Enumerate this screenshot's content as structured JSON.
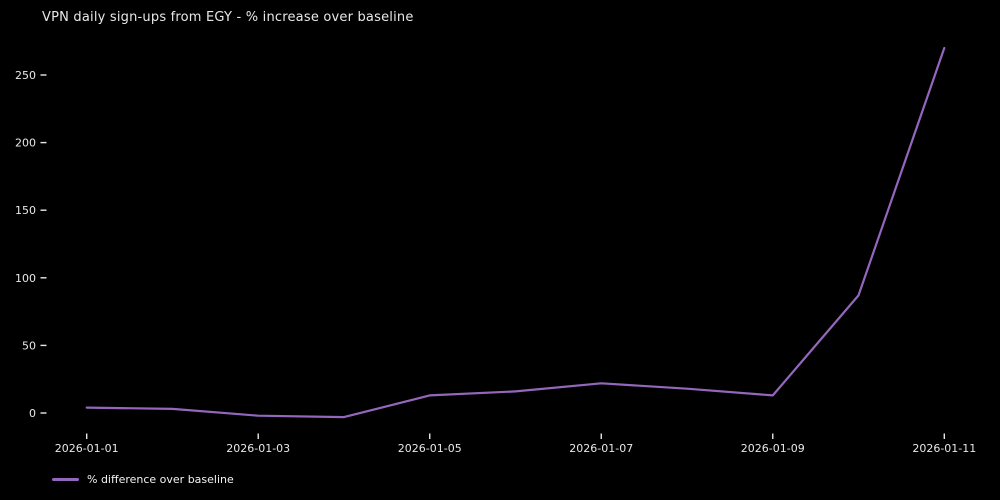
{
  "title": "VPN daily sign-ups from EGY - % increase over baseline",
  "legend": {
    "label": "% difference over baseline"
  },
  "colors": {
    "background": "#000000",
    "text": "#e8e8e8",
    "tick": "#e8e8e8",
    "line": "#9467bd"
  },
  "chart_data": {
    "type": "line",
    "title": "VPN daily sign-ups from EGY - % increase over baseline",
    "x": [
      "2026-01-01",
      "2026-01-02",
      "2026-01-03",
      "2026-01-04",
      "2026-01-05",
      "2026-01-06",
      "2026-01-07",
      "2026-01-08",
      "2026-01-09",
      "2026-01-10",
      "2026-01-11"
    ],
    "series": [
      {
        "name": "% difference over baseline",
        "color": "#9467bd",
        "values": [
          4,
          3,
          -2,
          -3,
          13,
          16,
          22,
          18,
          13,
          87,
          270
        ]
      }
    ],
    "xlabel": "",
    "ylabel": "",
    "xticks": [
      "2026-01-01",
      "2026-01-03",
      "2026-01-05",
      "2026-01-07",
      "2026-01-09",
      "2026-01-11"
    ],
    "yticks": [
      0,
      50,
      100,
      150,
      200,
      250
    ],
    "ylim": [
      -20,
      275
    ],
    "grid": false,
    "legend_position": "lower left",
    "background": "black"
  }
}
